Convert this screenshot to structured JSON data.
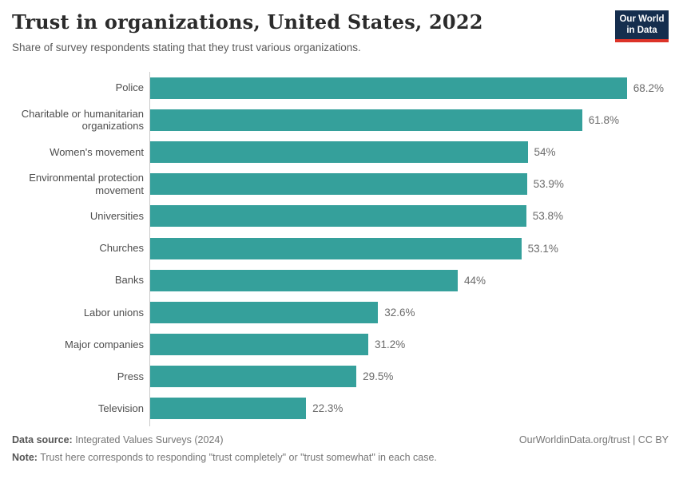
{
  "header": {
    "title": "Trust in organizations, United States, 2022",
    "subtitle": "Share of survey respondents stating that they trust various organizations.",
    "logo": {
      "line1": "Our World",
      "line2": "in Data"
    }
  },
  "chart_data": {
    "type": "bar",
    "orientation": "horizontal",
    "title": "Trust in organizations, United States, 2022",
    "xlabel": "",
    "ylabel": "",
    "xlim": [
      0,
      75
    ],
    "grid": false,
    "legend": false,
    "bar_color": "#35a09b",
    "categories": [
      "Police",
      "Charitable or humanitarian organizations",
      "Women's movement",
      "Environmental protection movement",
      "Universities",
      "Churches",
      "Banks",
      "Labor unions",
      "Major companies",
      "Press",
      "Television"
    ],
    "values": [
      68.2,
      61.8,
      54,
      53.9,
      53.8,
      53.1,
      44,
      32.6,
      31.2,
      29.5,
      22.3
    ],
    "value_labels": [
      "68.2%",
      "61.8%",
      "54%",
      "53.9%",
      "53.8%",
      "53.1%",
      "44%",
      "32.6%",
      "31.2%",
      "29.5%",
      "22.3%"
    ]
  },
  "footer": {
    "data_source_label": "Data source:",
    "data_source_text": "Integrated Values Surveys (2024)",
    "note_label": "Note:",
    "note_text": "Trust here corresponds to responding \"trust completely\" or \"trust somewhat\" in each case.",
    "credit": "OurWorldinData.org/trust | CC BY"
  },
  "colors": {
    "bar": "#35a09b",
    "axis_line": "#c9c9c9",
    "logo_background": "#152e4e",
    "logo_accent": "#dc3328"
  }
}
